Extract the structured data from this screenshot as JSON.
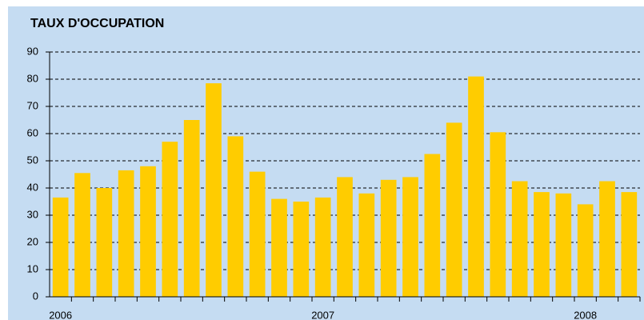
{
  "chart_data": {
    "type": "bar",
    "title": "TAUX D'OCCUPATION",
    "categories": [
      "2006",
      null,
      null,
      null,
      null,
      null,
      null,
      null,
      null,
      null,
      null,
      null,
      "2007",
      null,
      null,
      null,
      null,
      null,
      null,
      null,
      null,
      null,
      null,
      null,
      "2008",
      null,
      null
    ],
    "values": [
      36.5,
      45.5,
      40,
      46.5,
      48,
      57,
      65,
      78.5,
      59,
      46,
      36,
      35,
      36.5,
      44,
      38,
      43,
      44,
      52.5,
      64,
      81,
      60.5,
      42.5,
      38.5,
      38,
      34,
      42.5,
      38.5
    ],
    "color": "#ffcc00",
    "ylim": [
      0,
      90
    ],
    "yticks": [
      0,
      10,
      20,
      30,
      40,
      50,
      60,
      70,
      80,
      90
    ],
    "grid": true
  }
}
